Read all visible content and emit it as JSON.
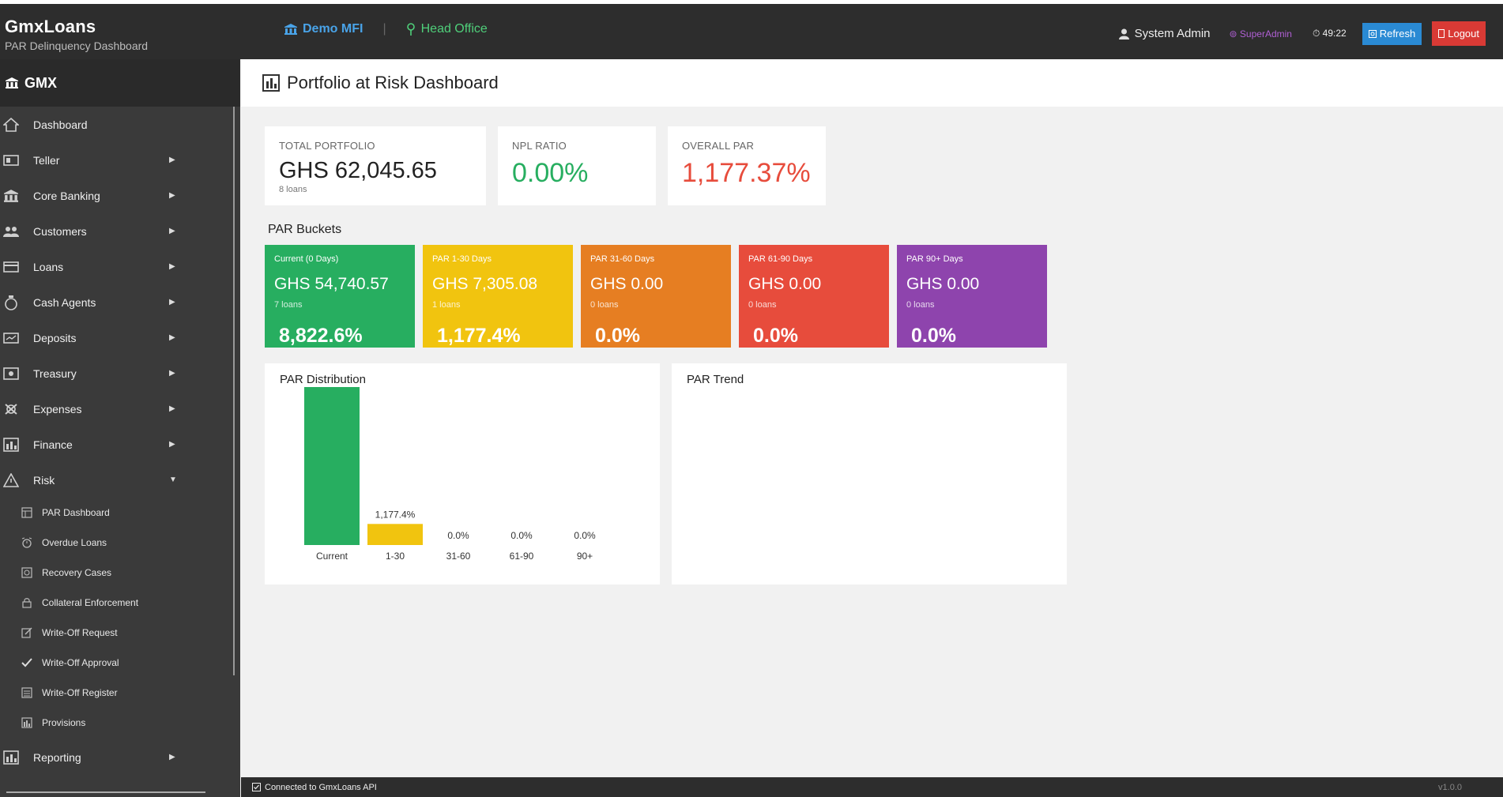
{
  "header": {
    "brand_title": "GmxLoans",
    "brand_subtitle": "PAR  Delinquency Dashboard",
    "tenant": "Demo MFI",
    "branch": "Head Office",
    "user": "System Admin",
    "role": "SuperAdmin",
    "session_timer": "49:22",
    "refresh_label": "Refresh",
    "logout_label": "Logout"
  },
  "sidebar": {
    "brand": "GMX",
    "items": [
      {
        "label": "Dashboard",
        "icon": "home-icon"
      },
      {
        "label": "Teller",
        "icon": "teller-icon"
      },
      {
        "label": "Core Banking",
        "icon": "bank-icon"
      },
      {
        "label": "Customers",
        "icon": "customers-icon"
      },
      {
        "label": "Loans",
        "icon": "loans-icon"
      },
      {
        "label": "Cash Agents",
        "icon": "cash-agents-icon"
      },
      {
        "label": "Deposits",
        "icon": "deposits-icon"
      },
      {
        "label": "Treasury",
        "icon": "treasury-icon"
      },
      {
        "label": "Expenses",
        "icon": "expenses-icon"
      },
      {
        "label": "Finance",
        "icon": "finance-icon"
      },
      {
        "label": "Risk",
        "icon": "risk-icon"
      }
    ],
    "risk_subitems": [
      {
        "label": "PAR Dashboard"
      },
      {
        "label": "Overdue Loans"
      },
      {
        "label": "Recovery Cases"
      },
      {
        "label": "Collateral Enforcement"
      },
      {
        "label": "Write-Off Request"
      },
      {
        "label": "Write-Off Approval"
      },
      {
        "label": "Write-Off Register"
      },
      {
        "label": "Provisions"
      }
    ],
    "reporting": {
      "label": "Reporting"
    }
  },
  "page": {
    "title": "Portfolio at Risk Dashboard"
  },
  "kpis": {
    "total_portfolio": {
      "label": "TOTAL PORTFOLIO",
      "value": "GHS 62,045.65",
      "sub": "8 loans"
    },
    "npl_ratio": {
      "label": "NPL RATIO",
      "value": "0.00%"
    },
    "overall_par": {
      "label": "OVERALL PAR",
      "value": "1,177.37%"
    }
  },
  "par_buckets": {
    "title": "PAR Buckets",
    "items": [
      {
        "label": "Current (0 Days)",
        "amount": "GHS 54,740.57",
        "count": "7 loans",
        "pct": "8,822.6%",
        "color": "#27ae60"
      },
      {
        "label": "PAR 1-30 Days",
        "amount": "GHS 7,305.08",
        "count": "1 loans",
        "pct": "1,177.4%",
        "color": "#f1c40f"
      },
      {
        "label": "PAR 31-60 Days",
        "amount": "GHS 0.00",
        "count": "0 loans",
        "pct": "0.0%",
        "color": "#e67e22"
      },
      {
        "label": "PAR 61-90 Days",
        "amount": "GHS 0.00",
        "count": "0 loans",
        "pct": "0.0%",
        "color": "#e74c3c"
      },
      {
        "label": "PAR 90+ Days",
        "amount": "GHS 0.00",
        "count": "0 loans",
        "pct": "0.0%",
        "color": "#8e44ad"
      }
    ]
  },
  "distribution_title": "PAR Distribution",
  "trend_title": "PAR Trend",
  "chart_data": {
    "type": "bar",
    "title": "PAR Distribution",
    "categories": [
      "Current",
      "1-30",
      "31-60",
      "61-90",
      "90+"
    ],
    "values": [
      8822.6,
      1177.4,
      0.0,
      0.0,
      0.0
    ],
    "data_labels": [
      "",
      "1,177.4%",
      "0.0%",
      "0.0%",
      "0.0%"
    ],
    "colors": [
      "#27ae60",
      "#f1c40f",
      "#e67e22",
      "#e74c3c",
      "#8e44ad"
    ],
    "ylim": [
      0,
      8822.6
    ]
  },
  "statusbar": {
    "status": "Connected to GmxLoans API",
    "version": "v1.0.0"
  }
}
